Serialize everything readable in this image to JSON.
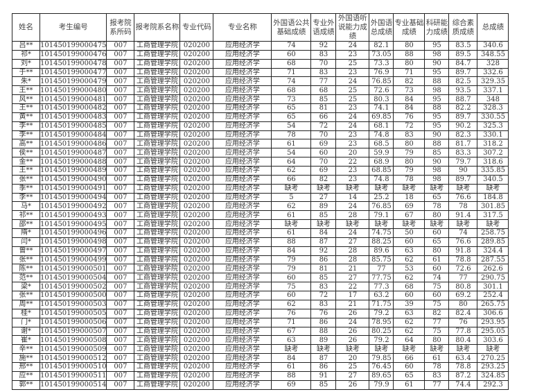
{
  "headers": [
    "姓名",
    "考生编号",
    "报考院系所码",
    "报考院系名称",
    "专业代码",
    "专业名称",
    "外国语公共基础成绩",
    "专业外语成绩",
    "外国语听说能力成绩",
    "外国语总成绩",
    "专业基础成绩",
    "科研能力成绩",
    "综合素质成绩",
    "总成绩"
  ],
  "rows": [
    [
      "吕**",
      "101450199000475",
      "007",
      "工商管理学院",
      "020200",
      "应用经济学",
      "74",
      "92",
      "24",
      "82.1",
      "80",
      "95",
      "83.5",
      "340.6"
    ],
    [
      "祁*",
      "101450199000476",
      "007",
      "工商管理学院",
      "020200",
      "应用经济学",
      "60",
      "83",
      "23",
      "73.05",
      "88",
      "98",
      "89.5",
      "348.55"
    ],
    [
      "刘*",
      "101450199000478",
      "007",
      "工商管理学院",
      "020200",
      "应用经济学",
      "68",
      "70",
      "25",
      "73.3",
      "80",
      "90",
      "84.7",
      "328"
    ],
    [
      "于**",
      "101450199000477",
      "007",
      "工商管理学院",
      "020200",
      "应用经济学",
      "71",
      "83",
      "23",
      "76.9",
      "71",
      "95",
      "89.7",
      "332.6"
    ],
    [
      "朱*",
      "101450199000479",
      "007",
      "工商管理学院",
      "020200",
      "应用经济学",
      "74",
      "77",
      "24",
      "76.85",
      "82",
      "88",
      "82.5",
      "329.35"
    ],
    [
      "王**",
      "101450199000480",
      "007",
      "工商管理学院",
      "020200",
      "应用经济学",
      "68",
      "68",
      "25",
      "72.6",
      "73",
      "98",
      "93.5",
      "337.1"
    ],
    [
      "风**",
      "101450199000481",
      "007",
      "工商管理学院",
      "020200",
      "应用经济学",
      "73",
      "85",
      "25",
      "80.3",
      "84",
      "95",
      "88.7",
      "348"
    ],
    [
      "王**",
      "101450199000482",
      "007",
      "工商管理学院",
      "020200",
      "应用经济学",
      "65",
      "81",
      "23",
      "74.1",
      "84",
      "88",
      "82.2",
      "328.3"
    ],
    [
      "黄**",
      "101450199000483",
      "007",
      "工商管理学院",
      "020200",
      "应用经济学",
      "65",
      "66",
      "24",
      "69.85",
      "76",
      "95",
      "89.7",
      "330.55"
    ],
    [
      "李**",
      "101450199000485",
      "007",
      "工商管理学院",
      "020200",
      "应用经济学",
      "54",
      "72",
      "24",
      "68.1",
      "72",
      "95",
      "90.2",
      "325.3"
    ],
    [
      "李**",
      "101450199000484",
      "007",
      "工商管理学院",
      "020200",
      "应用经济学",
      "78",
      "70",
      "23",
      "74.8",
      "83",
      "90",
      "82.3",
      "330.1"
    ],
    [
      "高**",
      "101450199000486",
      "007",
      "工商管理学院",
      "020200",
      "应用经济学",
      "61",
      "69",
      "23",
      "68.5",
      "80",
      "88",
      "81.7",
      "318.2"
    ],
    [
      "侯**",
      "101450199000487",
      "007",
      "工商管理学院",
      "020200",
      "应用经济学",
      "54",
      "60",
      "20",
      "59.9",
      "79",
      "85",
      "83.3",
      "307.2"
    ],
    [
      "金**",
      "101450199000488",
      "007",
      "工商管理学院",
      "020200",
      "应用经济学",
      "64",
      "70",
      "22",
      "68.9",
      "80",
      "90",
      "79.7",
      "318.6"
    ],
    [
      "王**",
      "101450199000489",
      "007",
      "工商管理学院",
      "020200",
      "应用经济学",
      "62",
      "69",
      "23",
      "68.85",
      "79",
      "98",
      "90",
      "335.85"
    ],
    [
      "张**",
      "101450199000490",
      "007",
      "工商管理学院",
      "020200",
      "应用经济学",
      "66",
      "82",
      "23",
      "74.8",
      "78",
      "98",
      "89.7",
      "340.5"
    ],
    [
      "季**",
      "101450199000491",
      "007",
      "工商管理学院",
      "020200",
      "应用经济学",
      "缺考",
      "缺考",
      "缺考",
      "缺考",
      "缺考",
      "缺考",
      "缺考",
      "缺考"
    ],
    [
      "李**",
      "101450199000494",
      "007",
      "工商管理学院",
      "020200",
      "应用经济学",
      "5",
      "27",
      "14",
      "25.2",
      "18",
      "65",
      "76.6",
      "184.8"
    ],
    [
      "马*",
      "101450199000492",
      "007",
      "工商管理学院",
      "020200",
      "应用经济学",
      "62",
      "89",
      "24",
      "76.85",
      "69",
      "78",
      "78",
      "301.85"
    ],
    [
      "祁**",
      "101450199000493",
      "007",
      "工商管理学院",
      "020200",
      "应用经济学",
      "61",
      "85",
      "28",
      "79.1",
      "67",
      "80",
      "91.4",
      "317.5"
    ],
    [
      "邵**",
      "101450199000495",
      "007",
      "工商管理学院",
      "020200",
      "应用经济学",
      "缺考",
      "缺考",
      "缺考",
      "缺考",
      "缺考",
      "缺考",
      "缺考",
      "缺考"
    ],
    [
      "隋*",
      "101450199000496",
      "007",
      "工商管理学院",
      "020200",
      "应用经济学",
      "61",
      "84",
      "24",
      "74.75",
      "50",
      "60",
      "74",
      "258.75"
    ],
    [
      "闫*",
      "101450199000498",
      "007",
      "工商管理学院",
      "020200",
      "应用经济学",
      "88",
      "87",
      "27",
      "88.25",
      "60",
      "65",
      "76.6",
      "289.85"
    ],
    [
      "曾**",
      "101450199000497",
      "007",
      "工商管理学院",
      "020200",
      "应用经济学",
      "84",
      "92",
      "28",
      "89.6",
      "63",
      "80",
      "91.8",
      "324.4"
    ],
    [
      "张**",
      "101450199000499",
      "007",
      "工商管理学院",
      "020200",
      "应用经济学",
      "79",
      "86",
      "28",
      "85.75",
      "62",
      "61",
      "78.8",
      "287.55"
    ],
    [
      "陈**",
      "101450199000501",
      "007",
      "工商管理学院",
      "020200",
      "应用经济学",
      "79",
      "81",
      "21",
      "77",
      "53",
      "60",
      "72.6",
      "262.6"
    ],
    [
      "范**",
      "101450199000504",
      "007",
      "工商管理学院",
      "020200",
      "应用经济学",
      "60",
      "85",
      "27",
      "77.75",
      "62",
      "74",
      "77",
      "290.75"
    ],
    [
      "梁*",
      "101450199000502",
      "007",
      "工商管理学院",
      "020200",
      "应用经济学",
      "75",
      "83",
      "22",
      "77.3",
      "68",
      "75",
      "80.8",
      "301.1"
    ],
    [
      "张**",
      "101450199000500",
      "007",
      "工商管理学院",
      "020200",
      "应用经济学",
      "60",
      "72",
      "17",
      "63.2",
      "60",
      "60",
      "69.2",
      "252.4"
    ],
    [
      "周**",
      "101450199000503",
      "007",
      "工商管理学院",
      "020200",
      "应用经济学",
      "62",
      "83",
      "21",
      "71.75",
      "39",
      "75",
      "80",
      "265.75"
    ],
    [
      "桂*",
      "101450199000505",
      "007",
      "工商管理学院",
      "020200",
      "应用经济学",
      "76",
      "76",
      "26",
      "79.2",
      "63",
      "82",
      "82.4",
      "306.6"
    ],
    [
      "门*",
      "101450199000506",
      "007",
      "工商管理学院",
      "020200",
      "应用经济学",
      "71",
      "86",
      "24",
      "78.95",
      "62",
      "77",
      "76",
      "293.95"
    ],
    [
      "谢*",
      "101450199000507",
      "007",
      "工商管理学院",
      "020200",
      "应用经济学",
      "67",
      "88",
      "26",
      "80.25",
      "62",
      "75",
      "77.8",
      "295.05"
    ],
    [
      "崔*",
      "101450199000508",
      "007",
      "工商管理学院",
      "020200",
      "应用经济学",
      "63",
      "89",
      "26",
      "79.2",
      "64",
      "80",
      "80.4",
      "303.6"
    ],
    [
      "辛**",
      "101450199000509",
      "007",
      "工商管理学院",
      "020200",
      "应用经济学",
      "缺考",
      "缺考",
      "缺考",
      "缺考",
      "缺考",
      "缺考",
      "缺考",
      "缺考"
    ],
    [
      "施**",
      "101450199000512",
      "007",
      "工商管理学院",
      "020200",
      "应用经济学",
      "84",
      "87",
      "20",
      "79.85",
      "66",
      "61",
      "63.4",
      "270.25"
    ],
    [
      "邢**",
      "101450199000510",
      "007",
      "工商管理学院",
      "020200",
      "应用经济学",
      "61",
      "86",
      "25",
      "76.45",
      "60",
      "78",
      "78.8",
      "293.25"
    ],
    [
      "应**",
      "101450199000511",
      "007",
      "工商管理学院",
      "020200",
      "应用经济学",
      "88",
      "91",
      "27",
      "89.65",
      "65",
      "83",
      "87.2",
      "324.85"
    ],
    [
      "郭**",
      "101450199000514",
      "007",
      "工商管理学院",
      "020200",
      "应用经济学",
      "69",
      "85",
      "26",
      "79.9",
      "61",
      "77",
      "74.4",
      "292.3"
    ]
  ]
}
